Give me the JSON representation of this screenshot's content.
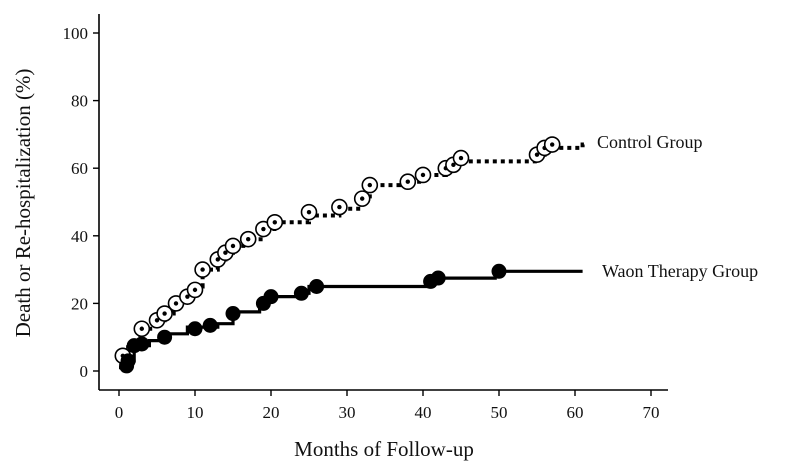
{
  "chart_data": {
    "type": "line",
    "title": "",
    "xlabel": "Months of Follow-up",
    "ylabel": "Death or Re-hospitalization (%)",
    "xlim": [
      0,
      70
    ],
    "ylim": [
      0,
      100
    ],
    "x_ticks": [
      0,
      10,
      20,
      30,
      40,
      50,
      60,
      70
    ],
    "y_ticks": [
      0,
      20,
      40,
      60,
      80,
      100
    ],
    "grid": false,
    "legend": "inline-right",
    "x_tick_labels": [
      "0",
      "10",
      "20",
      "30",
      "40",
      "50",
      "60",
      "70"
    ],
    "y_tick_labels": [
      "0",
      "20",
      "40",
      "60",
      "80",
      "100"
    ],
    "series": [
      {
        "name": "Control Group",
        "line_style": "dotted",
        "marker": "open-circle-dot",
        "color": "#000000",
        "line": [
          [
            0.3,
            1.5
          ],
          [
            0.3,
            4.5
          ],
          [
            1.2,
            4.5
          ],
          [
            1.2,
            7
          ],
          [
            2.8,
            7
          ],
          [
            2.8,
            12.5
          ],
          [
            4.8,
            12.5
          ],
          [
            4.8,
            15
          ],
          [
            6,
            15
          ],
          [
            6,
            17
          ],
          [
            7.2,
            17
          ],
          [
            7.2,
            20
          ],
          [
            8.8,
            20
          ],
          [
            8.8,
            22
          ],
          [
            10,
            22
          ],
          [
            10,
            25
          ],
          [
            11,
            25
          ],
          [
            11,
            30
          ],
          [
            13,
            30
          ],
          [
            13,
            33
          ],
          [
            14,
            33
          ],
          [
            14,
            35
          ],
          [
            15,
            35
          ],
          [
            15,
            37
          ],
          [
            17,
            37
          ],
          [
            17,
            39
          ],
          [
            19,
            39
          ],
          [
            19,
            42
          ],
          [
            21,
            42
          ],
          [
            21,
            44
          ],
          [
            25,
            44
          ],
          [
            25,
            46
          ],
          [
            29,
            46
          ],
          [
            29,
            48
          ],
          [
            32,
            48
          ],
          [
            32,
            51
          ],
          [
            33,
            51
          ],
          [
            33,
            55
          ],
          [
            37,
            55
          ],
          [
            37,
            56
          ],
          [
            40,
            56
          ],
          [
            40,
            58
          ],
          [
            43,
            58
          ],
          [
            43,
            60
          ],
          [
            44,
            60
          ],
          [
            44,
            62
          ],
          [
            55,
            62
          ],
          [
            55,
            64
          ],
          [
            56,
            64
          ],
          [
            56,
            66
          ],
          [
            61,
            66
          ],
          [
            61,
            67
          ],
          [
            61.5,
            67
          ]
        ],
        "points": [
          [
            0.5,
            4.5
          ],
          [
            3,
            12.5
          ],
          [
            5,
            15
          ],
          [
            6,
            17
          ],
          [
            7.5,
            20
          ],
          [
            9,
            22
          ],
          [
            10,
            24
          ],
          [
            11,
            30
          ],
          [
            13,
            33
          ],
          [
            14,
            35
          ],
          [
            15,
            37
          ],
          [
            17,
            39
          ],
          [
            19,
            42
          ],
          [
            20.5,
            44
          ],
          [
            25,
            47
          ],
          [
            29,
            48.5
          ],
          [
            32,
            51
          ],
          [
            33,
            55
          ],
          [
            38,
            56
          ],
          [
            40,
            58
          ],
          [
            43,
            60
          ],
          [
            44,
            61
          ],
          [
            45,
            63
          ],
          [
            55,
            64
          ],
          [
            56,
            66
          ],
          [
            57,
            67
          ]
        ]
      },
      {
        "name": "Waon Therapy Group",
        "line_style": "solid",
        "marker": "filled-circle",
        "color": "#000000",
        "line": [
          [
            0,
            1
          ],
          [
            1,
            1
          ],
          [
            1,
            3
          ],
          [
            2,
            3
          ],
          [
            2,
            7.5
          ],
          [
            4,
            7.5
          ],
          [
            4,
            9
          ],
          [
            6,
            9
          ],
          [
            6,
            11
          ],
          [
            9,
            11
          ],
          [
            9,
            13
          ],
          [
            13,
            13
          ],
          [
            13,
            14
          ],
          [
            15,
            14
          ],
          [
            15,
            17.5
          ],
          [
            18.5,
            17.5
          ],
          [
            18.5,
            20
          ],
          [
            19.5,
            20
          ],
          [
            19.5,
            22
          ],
          [
            23.5,
            22
          ],
          [
            23.5,
            23
          ],
          [
            25,
            23
          ],
          [
            25,
            25
          ],
          [
            40.5,
            25
          ],
          [
            40.5,
            26.5
          ],
          [
            42,
            26.5
          ],
          [
            42,
            27.5
          ],
          [
            49.5,
            27.5
          ],
          [
            49.5,
            29.5
          ],
          [
            61,
            29.5
          ]
        ],
        "points": [
          [
            1,
            1.5
          ],
          [
            1.2,
            3
          ],
          [
            2,
            7.5
          ],
          [
            3,
            8
          ],
          [
            6,
            10
          ],
          [
            10,
            12.5
          ],
          [
            12,
            13.5
          ],
          [
            15,
            17
          ],
          [
            19,
            20
          ],
          [
            20,
            22
          ],
          [
            24,
            23
          ],
          [
            26,
            25
          ],
          [
            41,
            26.5
          ],
          [
            42,
            27.5
          ],
          [
            50,
            29.5
          ]
        ]
      }
    ]
  }
}
